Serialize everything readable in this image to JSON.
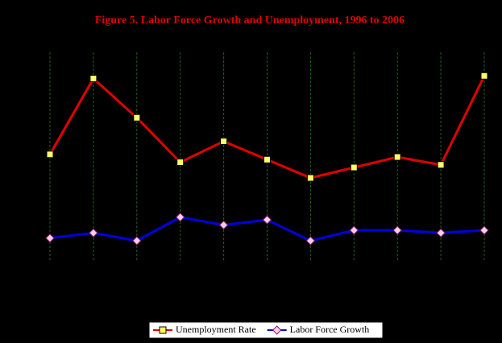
{
  "chart_data": {
    "type": "line",
    "title": "Figure 5. Labor Force Growth and Unemployment, 1996 to 2006",
    "categories": [
      null,
      null,
      null,
      null,
      null,
      null,
      null,
      null,
      null,
      null,
      null
    ],
    "series": [
      {
        "name": "Unemployment Rate",
        "color": "#e00000",
        "marker_color": "#ffff66",
        "marker": "square",
        "values": [
          4.1,
          7.0,
          5.5,
          3.8,
          4.6,
          3.9,
          3.2,
          3.6,
          4.0,
          3.7,
          7.1
        ]
      },
      {
        "name": "Labor Force Growth",
        "color": "#0000e0",
        "marker_color": "#ffccee",
        "marker": "diamond",
        "values": [
          0.9,
          1.1,
          0.8,
          1.7,
          1.4,
          1.6,
          0.8,
          1.2,
          1.2,
          1.1,
          1.2
        ]
      }
    ],
    "ylim": [
      0,
      8
    ],
    "legend": "bottom"
  }
}
